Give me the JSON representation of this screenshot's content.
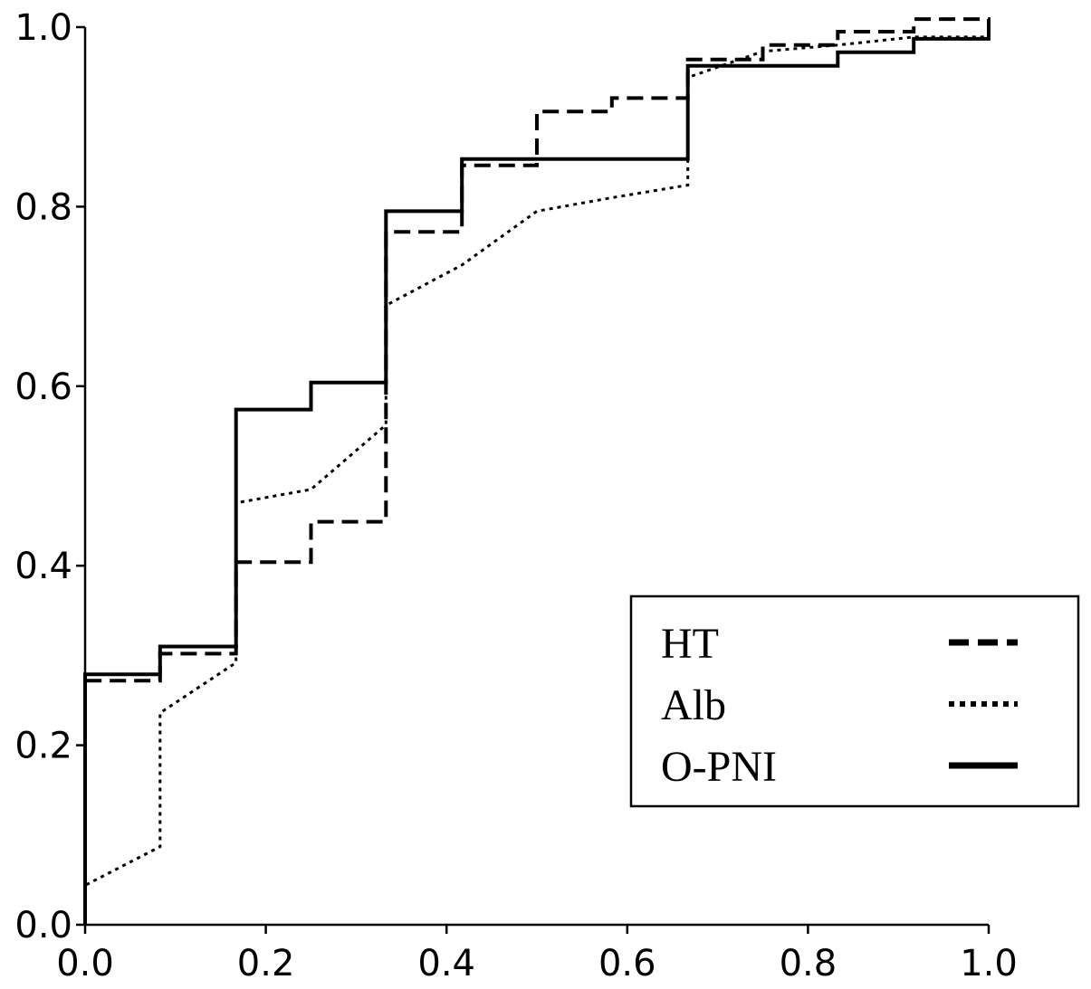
{
  "chart_data": {
    "type": "line",
    "title": "",
    "xlabel": "",
    "ylabel": "",
    "xlim": [
      0,
      1
    ],
    "ylim": [
      0,
      1
    ],
    "x_ticks": [
      "0.0",
      "0.2",
      "0.4",
      "0.6",
      "0.8",
      "1.0"
    ],
    "y_ticks": [
      "0.0",
      "0.2",
      "0.4",
      "0.6",
      "0.8",
      "1.0"
    ],
    "grid": false,
    "legend_position": "bottom-right",
    "series": [
      {
        "name": "HT",
        "line_style": "dashed",
        "color": "#000000",
        "points": [
          [
            0.0,
            0.0
          ],
          [
            0.0,
            0.272
          ],
          [
            0.083,
            0.272
          ],
          [
            0.083,
            0.302
          ],
          [
            0.167,
            0.302
          ],
          [
            0.167,
            0.404
          ],
          [
            0.25,
            0.404
          ],
          [
            0.25,
            0.449
          ],
          [
            0.333,
            0.449
          ],
          [
            0.333,
            0.772
          ],
          [
            0.417,
            0.772
          ],
          [
            0.417,
            0.846
          ],
          [
            0.5,
            0.846
          ],
          [
            0.5,
            0.906
          ],
          [
            0.583,
            0.906
          ],
          [
            0.583,
            0.921
          ],
          [
            0.667,
            0.921
          ],
          [
            0.667,
            0.964
          ],
          [
            0.75,
            0.964
          ],
          [
            0.75,
            0.98
          ],
          [
            0.833,
            0.98
          ],
          [
            0.833,
            0.995
          ],
          [
            0.917,
            0.995
          ],
          [
            0.917,
            1.009
          ],
          [
            1.0,
            1.009
          ],
          [
            1.0,
            0.993
          ]
        ]
      },
      {
        "name": "Alb",
        "line_style": "dotted",
        "color": "#000000",
        "points": [
          [
            0.0,
            0.0
          ],
          [
            0.0,
            0.044
          ],
          [
            0.083,
            0.087
          ],
          [
            0.083,
            0.236
          ],
          [
            0.167,
            0.292
          ],
          [
            0.167,
            0.47
          ],
          [
            0.25,
            0.485
          ],
          [
            0.333,
            0.557
          ],
          [
            0.333,
            0.69
          ],
          [
            0.417,
            0.735
          ],
          [
            0.5,
            0.795
          ],
          [
            0.583,
            0.81
          ],
          [
            0.667,
            0.824
          ],
          [
            0.667,
            0.944
          ],
          [
            0.75,
            0.973
          ],
          [
            0.833,
            0.98
          ],
          [
            0.917,
            0.989
          ],
          [
            1.0,
            0.989
          ],
          [
            1.0,
            1.0
          ]
        ]
      },
      {
        "name": "O-PNI",
        "line_style": "solid",
        "color": "#000000",
        "points": [
          [
            0.0,
            0.0
          ],
          [
            0.0,
            0.279
          ],
          [
            0.083,
            0.279
          ],
          [
            0.083,
            0.31
          ],
          [
            0.167,
            0.31
          ],
          [
            0.167,
            0.574
          ],
          [
            0.25,
            0.574
          ],
          [
            0.25,
            0.604
          ],
          [
            0.333,
            0.604
          ],
          [
            0.333,
            0.795
          ],
          [
            0.417,
            0.795
          ],
          [
            0.417,
            0.853
          ],
          [
            0.667,
            0.853
          ],
          [
            0.667,
            0.957
          ],
          [
            0.833,
            0.957
          ],
          [
            0.833,
            0.972
          ],
          [
            0.917,
            0.972
          ],
          [
            0.917,
            0.987
          ],
          [
            1.0,
            0.987
          ],
          [
            1.0,
            1.0
          ]
        ]
      }
    ]
  }
}
